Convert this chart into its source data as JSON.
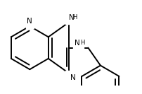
{
  "bg": "#ffffff",
  "bc": "#000000",
  "lw": 1.4,
  "dbo": 0.048,
  "fs": 7.5,
  "fss": 6.0,
  "tc": "#000000",
  "s": 0.28,
  "xlim": [
    0.0,
    1.85
  ],
  "ylim": [
    0.05,
    1.05
  ]
}
